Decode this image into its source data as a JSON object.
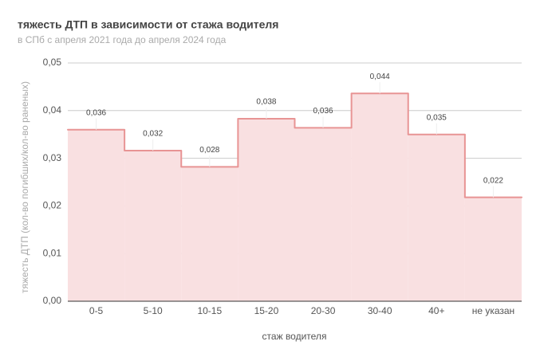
{
  "chart_data": {
    "type": "step-area",
    "title": "тяжесть ДТП в зависимости от стажа водителя",
    "subtitle": "в СПб с апреля 2021 года до апреля 2024 года",
    "x_label": "стаж водителя",
    "y_label": "тяжесть ДТП (кол-во погибших/кол-во раненых)",
    "categories": [
      "0-5",
      "5-10",
      "10-15",
      "15-20",
      "20-30",
      "30-40",
      "40+",
      "не указан"
    ],
    "values": [
      0.036,
      0.0316,
      0.0282,
      0.0383,
      0.0364,
      0.0436,
      0.035,
      0.0218
    ],
    "value_labels": [
      "0,036",
      "0,032",
      "0,028",
      "0,038",
      "0,036",
      "0,044",
      "0,035",
      "0,022"
    ],
    "color": "#e89494",
    "fill": "#f9e0e1",
    "ylim": [
      0,
      0.05
    ],
    "yticks": [
      {
        "value": 0,
        "label": "0,00"
      },
      {
        "value": 0.01,
        "label": "0,01"
      },
      {
        "value": 0.02,
        "label": "0,02"
      },
      {
        "value": 0.03,
        "label": "0,03"
      },
      {
        "value": 0.04,
        "label": "0,04"
      },
      {
        "value": 0.05,
        "label": "0,05"
      }
    ],
    "grid": true
  }
}
